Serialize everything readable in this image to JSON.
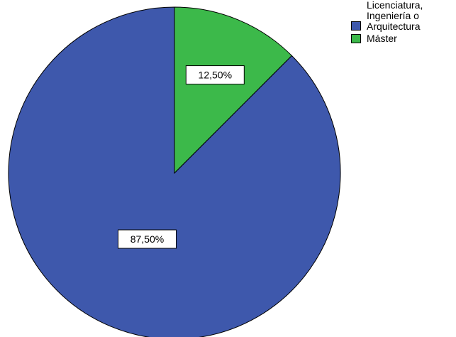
{
  "chart_data": {
    "type": "pie",
    "title": "",
    "start_angle_deg": 0,
    "direction": "clockwise",
    "slices": [
      {
        "category": "Máster",
        "value": 12.5,
        "label": "12,50%",
        "color": "#3cb94a"
      },
      {
        "category": "Licenciatura,\nIngeniería o\nArquitectura",
        "value": 87.5,
        "label": "87,50%",
        "color": "#3e58ac"
      }
    ],
    "legend": {
      "placement": "top-right",
      "entries": [
        {
          "label": "Licenciatura,\nIngeniería o\nArquitectura",
          "color": "#3e58ac"
        },
        {
          "label": "Máster",
          "color": "#3cb94a"
        }
      ]
    }
  }
}
